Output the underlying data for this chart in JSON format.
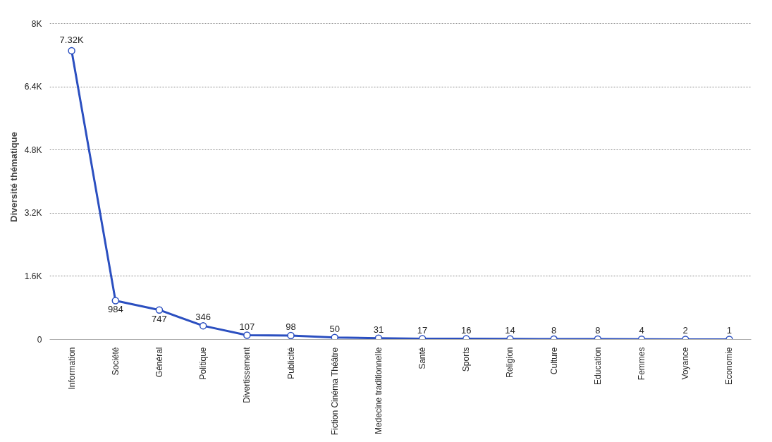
{
  "chart_data": {
    "type": "line",
    "ylabel": "Diversité thématique",
    "categories": [
      "Information",
      "Société",
      "Général",
      "Politique",
      "Divertissement",
      "Publicité",
      "Fiction Cinéma Théâtre",
      "Medecine traditionnelle",
      "Santé",
      "Sports",
      "Religion",
      "Culture",
      "Education",
      "Femmes",
      "Voyance",
      "Economie"
    ],
    "series": [
      {
        "color": "#2b4fc0",
        "values": [
          7320,
          984,
          747,
          346,
          107,
          98,
          50,
          31,
          17,
          16,
          14,
          8,
          8,
          4,
          2,
          1
        ]
      }
    ],
    "value_labels": [
      "7.32K",
      "984",
      "747",
      "346",
      "107",
      "98",
      "50",
      "31",
      "17",
      "16",
      "14",
      "8",
      "8",
      "4",
      "2",
      "1"
    ],
    "ylim": [
      0,
      8000
    ],
    "yticks": [
      0,
      {
        "value": 1600,
        "label": "1.6K"
      },
      {
        "value": 3200,
        "label": "3.2K"
      },
      {
        "value": 4800,
        "label": "4.8K"
      },
      {
        "value": 6400,
        "label": "6.4K"
      },
      {
        "value": 8000,
        "label": "8K"
      }
    ],
    "grid": "y",
    "marker": "circle",
    "line_style": "solid"
  }
}
